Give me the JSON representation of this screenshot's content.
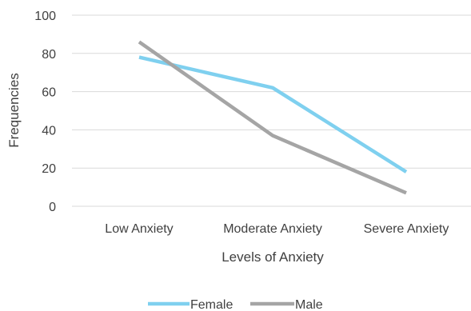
{
  "chart_data": {
    "type": "line",
    "categories": [
      "Low Anxiety",
      "Moderate Anxiety",
      "Severe Anxiety"
    ],
    "series": [
      {
        "name": "Female",
        "values": [
          78,
          62,
          18
        ],
        "color": "#7fd0ef"
      },
      {
        "name": "Male",
        "values": [
          86,
          37,
          7
        ],
        "color": "#a5a5a5"
      }
    ],
    "xlabel": "Levels of Anxiety",
    "ylabel": "Frequencies",
    "ylim": [
      0,
      100
    ],
    "yticks": [
      0,
      20,
      40,
      60,
      80,
      100
    ],
    "ytick_labels": [
      "0",
      "20",
      "40",
      "60",
      "80",
      "100"
    ],
    "grid": true,
    "legend_position": "bottom"
  }
}
